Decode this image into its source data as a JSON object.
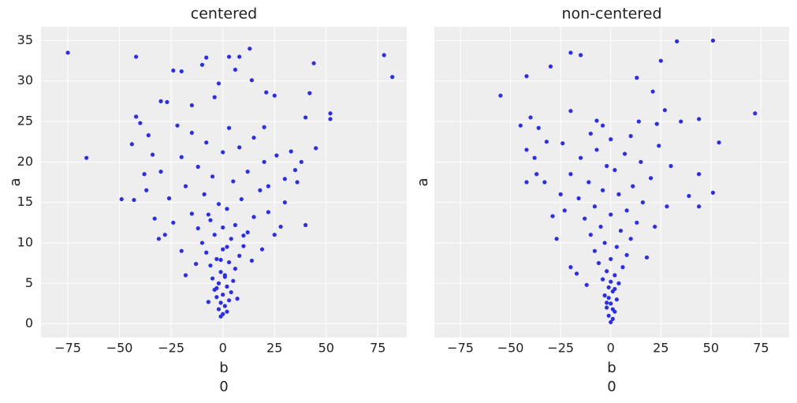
{
  "chart_data": [
    {
      "type": "scatter",
      "title": "centered",
      "xlabel_lines": [
        "b",
        "0"
      ],
      "ylabel": "a",
      "color": "#2a2eec",
      "grid": true,
      "show_ytick_labels": true,
      "xlim": [
        -88,
        89
      ],
      "ylim": [
        -1.7,
        36.7
      ],
      "xticks": [
        {
          "value": -75,
          "label": "−75"
        },
        {
          "value": -50,
          "label": "−50"
        },
        {
          "value": -25,
          "label": "−25"
        },
        0,
        25,
        50,
        75
      ],
      "yticks": [
        0,
        5,
        10,
        15,
        20,
        25,
        30,
        35
      ],
      "x": [
        -75,
        -42,
        -66,
        -49,
        78,
        82,
        44,
        52,
        52,
        42,
        45,
        40,
        13,
        8,
        3,
        -8,
        -10,
        -24,
        -20,
        6,
        14,
        -2,
        21,
        25,
        -30,
        -27,
        -15,
        -4,
        -42,
        -40,
        -36,
        -44,
        -38,
        -43,
        -37,
        40,
        38,
        36,
        35,
        30,
        28,
        22,
        -33,
        -31,
        -28,
        -18,
        0,
        2,
        -2,
        1,
        -1,
        3,
        -3,
        0,
        4,
        -4,
        2,
        -2,
        5,
        -5,
        1,
        -1,
        6,
        -6,
        3,
        -3,
        8,
        -8,
        0,
        10,
        -10,
        4,
        -4,
        12,
        -12,
        6,
        -6,
        15,
        -15,
        2,
        -2,
        9,
        -9,
        18,
        -18,
        5,
        -5,
        12,
        -12,
        20,
        -20,
        0,
        8,
        -8,
        15,
        -15,
        3,
        -22,
        20,
        10,
        -7,
        14,
        -13,
        19,
        -20,
        25,
        -24,
        22,
        -26,
        30,
        -30,
        26,
        33,
        -34,
        -1,
        1,
        -1,
        2,
        -3,
        0,
        7,
        -7
      ],
      "values": [
        33.5,
        33,
        20.5,
        15.4,
        33.2,
        30.5,
        32.2,
        26,
        25.3,
        28.5,
        21.7,
        12.2,
        34,
        33,
        33,
        32.9,
        32,
        31.3,
        31.2,
        31.4,
        30.1,
        29.7,
        28.6,
        28.2,
        27.5,
        27.4,
        27,
        28,
        25.6,
        24.8,
        23.3,
        22.2,
        18.5,
        15.3,
        16.5,
        25.5,
        20,
        17.5,
        19,
        15,
        12,
        17,
        13,
        10.5,
        11,
        6,
        1.2,
        1.5,
        1.8,
        2.2,
        2.6,
        2.9,
        3.3,
        3.6,
        3.9,
        4.2,
        4.6,
        5,
        5.3,
        5.6,
        6,
        6.4,
        6.8,
        7.2,
        7.6,
        8,
        8.4,
        8.8,
        9.2,
        9.6,
        10,
        10.5,
        11,
        11.3,
        11.8,
        12.2,
        12.8,
        13.2,
        13.6,
        14.2,
        14.8,
        15.4,
        16,
        16.5,
        17,
        17.6,
        18.2,
        18.8,
        19.4,
        20,
        20.6,
        21.2,
        21.8,
        22.4,
        23,
        23.6,
        24.2,
        24.5,
        24.3,
        10.9,
        13.5,
        7.8,
        7.4,
        9.2,
        9,
        11,
        12.5,
        13.8,
        15.5,
        17.9,
        18.8,
        20.8,
        21.3,
        20.9,
        0.9,
        5.8,
        7.9,
        9.5,
        4.4,
        11.9,
        3.1,
        2.7
      ]
    },
    {
      "type": "scatter",
      "title": "non-centered",
      "xlabel_lines": [
        "b",
        "0"
      ],
      "ylabel": "a",
      "color": "#2a2eec",
      "grid": true,
      "show_ytick_labels": false,
      "xlim": [
        -88,
        89
      ],
      "ylim": [
        -1.7,
        36.7
      ],
      "xticks": [
        {
          "value": -75,
          "label": "−75"
        },
        {
          "value": -50,
          "label": "−50"
        },
        {
          "value": -25,
          "label": "−25"
        },
        0,
        25,
        50,
        75
      ],
      "yticks": [
        0,
        5,
        10,
        15,
        20,
        25,
        30,
        35
      ],
      "x": [
        -55,
        -42,
        -30,
        -20,
        -15,
        33,
        51,
        25,
        72,
        54,
        44,
        51,
        44,
        44,
        39,
        35,
        -45,
        -40,
        -36,
        -42,
        -38,
        -42,
        -33,
        -37,
        -32,
        13,
        21,
        27,
        -20,
        -7,
        -4,
        14,
        23,
        -23,
        -29,
        -27,
        -20,
        -12,
        0,
        1,
        -1,
        2,
        -2,
        0,
        3,
        -3,
        1,
        -1,
        4,
        -4,
        2,
        -2,
        6,
        -6,
        0,
        8,
        -8,
        3,
        -3,
        10,
        -10,
        5,
        -5,
        13,
        -13,
        0,
        8,
        -8,
        16,
        -16,
        4,
        -4,
        11,
        -11,
        20,
        -20,
        2,
        -2,
        15,
        -15,
        7,
        -7,
        24,
        -24,
        0,
        10,
        -10,
        18,
        -17,
        22,
        -25,
        28,
        30,
        1,
        -1,
        0,
        2,
        -2
      ],
      "values": [
        28.2,
        30.6,
        31.8,
        33.5,
        33.2,
        34.9,
        35,
        32.5,
        26,
        22.4,
        25.3,
        16.2,
        14.5,
        18.5,
        15.8,
        25,
        24.5,
        25.5,
        24.2,
        21.5,
        20.5,
        17.5,
        17.5,
        18.5,
        22.5,
        30.4,
        28.7,
        26.4,
        26.3,
        25.1,
        24.5,
        25,
        24.7,
        14,
        13.3,
        10.5,
        7,
        4.8,
        0.2,
        0.6,
        1,
        1.5,
        2,
        2.5,
        3,
        3.5,
        4,
        4.5,
        5,
        5.5,
        6,
        6.5,
        7,
        7.5,
        8,
        8.5,
        9,
        9.5,
        10,
        10.5,
        11,
        11.5,
        12,
        12.5,
        13,
        13.5,
        14,
        14.5,
        15,
        15.5,
        16,
        16.5,
        17,
        17.5,
        18,
        18.5,
        19,
        19.5,
        20,
        20.5,
        21,
        21.5,
        22,
        22.3,
        22.8,
        23.2,
        23.5,
        8.2,
        6.2,
        12,
        16,
        14.5,
        19.5,
        1.8,
        3.2,
        5.2,
        4.3,
        2.6
      ]
    }
  ]
}
